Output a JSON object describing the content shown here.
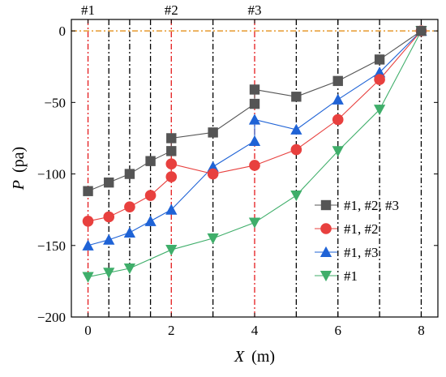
{
  "chart_data": {
    "type": "line",
    "xlabel_var": "X",
    "xlabel_unit": "(m)",
    "ylabel_var": "P",
    "ylabel_unit": "(pa)",
    "xlim": [
      -0.4,
      8.4
    ],
    "ylim": [
      -200,
      8
    ],
    "xticks": [
      0,
      2,
      4,
      6,
      8
    ],
    "yticks": [
      0,
      -50,
      -100,
      -150,
      -200
    ],
    "legend_position": "center-right",
    "zero_line": {
      "y": 0,
      "color": "#e69a2e"
    },
    "vertical_lines": [
      {
        "x": 0,
        "label": "#1",
        "color": "#e41a1c"
      },
      {
        "x": 0.5,
        "label": "",
        "color": "#000000"
      },
      {
        "x": 1,
        "label": "",
        "color": "#000000"
      },
      {
        "x": 1.5,
        "label": "",
        "color": "#000000"
      },
      {
        "x": 2,
        "label": "#2",
        "color": "#e41a1c"
      },
      {
        "x": 3,
        "label": "",
        "color": "#000000"
      },
      {
        "x": 4,
        "label": "#3",
        "color": "#e41a1c"
      },
      {
        "x": 5,
        "label": "",
        "color": "#000000"
      },
      {
        "x": 6,
        "label": "",
        "color": "#000000"
      },
      {
        "x": 7,
        "label": "",
        "color": "#000000"
      },
      {
        "x": 8,
        "label": "",
        "color": "#000000"
      }
    ],
    "series": [
      {
        "name": "#1, #2, #3",
        "color": "#555555",
        "marker": "square",
        "points": [
          [
            0,
            -112
          ],
          [
            0.5,
            -106
          ],
          [
            1,
            -100
          ],
          [
            1.5,
            -91
          ],
          [
            2,
            -84
          ],
          [
            2,
            -75
          ],
          [
            3,
            -71
          ],
          [
            4,
            -51
          ],
          [
            4,
            -41
          ],
          [
            5,
            -46
          ],
          [
            6,
            -35
          ],
          [
            7,
            -20
          ],
          [
            8,
            0
          ]
        ]
      },
      {
        "name": "#1, #2",
        "color": "#e8403e",
        "marker": "circle",
        "points": [
          [
            0,
            -133
          ],
          [
            0.5,
            -130
          ],
          [
            1,
            -123
          ],
          [
            1.5,
            -115
          ],
          [
            2,
            -102
          ],
          [
            2,
            -93
          ],
          [
            3,
            -100
          ],
          [
            4,
            -94
          ],
          [
            5,
            -83
          ],
          [
            6,
            -62
          ],
          [
            7,
            -34
          ],
          [
            8,
            0
          ]
        ]
      },
      {
        "name": "#1, #3",
        "color": "#1f63d6",
        "marker": "triangle-up",
        "points": [
          [
            0,
            -150
          ],
          [
            0.5,
            -146
          ],
          [
            1,
            -141
          ],
          [
            1.5,
            -133
          ],
          [
            2,
            -125
          ],
          [
            3,
            -95
          ],
          [
            4,
            -77
          ],
          [
            4,
            -62
          ],
          [
            5,
            -69
          ],
          [
            6,
            -48
          ],
          [
            7,
            -29
          ],
          [
            8,
            0
          ]
        ]
      },
      {
        "name": "#1",
        "color": "#3fae6a",
        "marker": "triangle-down",
        "points": [
          [
            0,
            -172
          ],
          [
            0.5,
            -169
          ],
          [
            1,
            -166
          ],
          [
            2,
            -153
          ],
          [
            3,
            -145
          ],
          [
            4,
            -134
          ],
          [
            5,
            -115
          ],
          [
            6,
            -84
          ],
          [
            7,
            -55
          ],
          [
            8,
            0
          ]
        ]
      }
    ]
  }
}
